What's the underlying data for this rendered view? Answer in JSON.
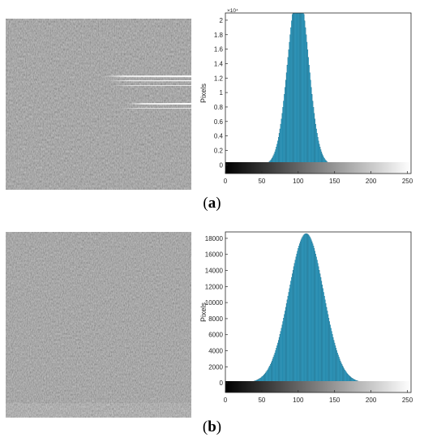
{
  "panels": [
    {
      "caption_letter": "a",
      "chart_data": {
        "type": "bar",
        "title": "",
        "xlabel": "",
        "ylabel": "Pixels",
        "exponent_label": "×10⁴",
        "xlim": [
          0,
          255
        ],
        "ylim": [
          -0.12,
          2.1
        ],
        "xticks": [
          0,
          50,
          100,
          150,
          200,
          250
        ],
        "yticks": [
          0,
          0.2,
          0.4,
          0.6,
          0.8,
          1,
          1.2,
          1.4,
          1.6,
          1.8,
          2
        ],
        "ytick_labels": [
          "0",
          "0.2",
          "0.4",
          "0.6",
          "0.8",
          "1",
          "1.2",
          "1.4",
          "1.6",
          "1.8",
          "2"
        ],
        "distribution": {
          "shape": "gaussian",
          "mean": 100,
          "sigma": 14,
          "peak": 2.45
        },
        "bar_color": "#2ea4cc",
        "grayscale_colorbar": true,
        "grid": false
      },
      "image": {
        "shows_streaks": true
      }
    },
    {
      "caption_letter": "b",
      "chart_data": {
        "type": "bar",
        "title": "",
        "xlabel": "",
        "ylabel": "Pixels",
        "exponent_label": "",
        "xlim": [
          0,
          255
        ],
        "ylim": [
          -1200,
          18800
        ],
        "xticks": [
          0,
          50,
          100,
          150,
          200,
          250
        ],
        "yticks": [
          0,
          2000,
          4000,
          6000,
          8000,
          10000,
          12000,
          14000,
          16000,
          18000
        ],
        "ytick_labels": [
          "0",
          "2000",
          "4000",
          "6000",
          "8000",
          "10000",
          "12000",
          "14000",
          "16000",
          "18000"
        ],
        "distribution": {
          "shape": "gaussian",
          "mean": 111,
          "sigma": 24,
          "peak": 18600
        },
        "bar_color": "#2ea4cc",
        "grayscale_colorbar": true,
        "grid": false
      },
      "image": {
        "shows_streaks": false
      }
    }
  ]
}
